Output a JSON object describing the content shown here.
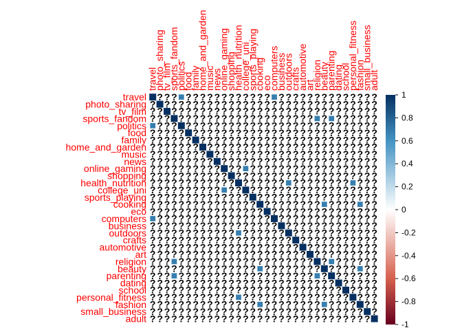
{
  "chart_data": {
    "type": "heatmap",
    "variables": [
      "travel",
      "photo_sharing",
      "tv_film",
      "sports_fandom",
      "politics",
      "food",
      "family",
      "home_and_garden",
      "music",
      "news",
      "online_gaming",
      "shopping",
      "health_nutrition",
      "college_uni",
      "sports_playing",
      "cooking",
      "eco",
      "computers",
      "business",
      "outdoors",
      "crafts",
      "automotive",
      "art",
      "religion",
      "beauty",
      "parenting",
      "dating",
      "school",
      "personal_fitness",
      "fashion",
      "small_business",
      "adult"
    ],
    "cell_placeholder": "?",
    "diagonal_value": 1,
    "highlighted_cells": [
      {
        "row": "travel",
        "col": "politics",
        "value": 0.6
      },
      {
        "row": "travel",
        "col": "computers",
        "value": 0.6
      },
      {
        "row": "sports_fandom",
        "col": "religion",
        "value": 0.6
      },
      {
        "row": "sports_fandom",
        "col": "parenting",
        "value": 0.6
      },
      {
        "row": "online_gaming",
        "col": "college_uni",
        "value": 0.6
      },
      {
        "row": "health_nutrition",
        "col": "outdoors",
        "value": 0.6
      },
      {
        "row": "health_nutrition",
        "col": "personal_fitness",
        "value": 0.6
      },
      {
        "row": "cooking",
        "col": "beauty",
        "value": 0.6
      },
      {
        "row": "cooking",
        "col": "fashion",
        "value": 0.6
      },
      {
        "row": "religion",
        "col": "parenting",
        "value": 0.6
      },
      {
        "row": "beauty",
        "col": "fashion",
        "value": 0.6
      }
    ],
    "colorbar": {
      "ticks": [
        "1",
        "0.8",
        "0.6",
        "0.4",
        "0.2",
        "0",
        "-0.2",
        "-0.4",
        "-0.6",
        "-0.8",
        "-1"
      ],
      "range": [
        -1,
        1
      ],
      "colors": {
        "neg1": "#67001f",
        "neg05": "#d6604d",
        "zero": "#ffffff",
        "pos05": "#4393c3",
        "pos1": "#053061"
      }
    }
  },
  "colors": {
    "label": "#ff0000",
    "diagonal": "#053061",
    "highlight": "#4393c3",
    "placeholder": "#000000"
  }
}
